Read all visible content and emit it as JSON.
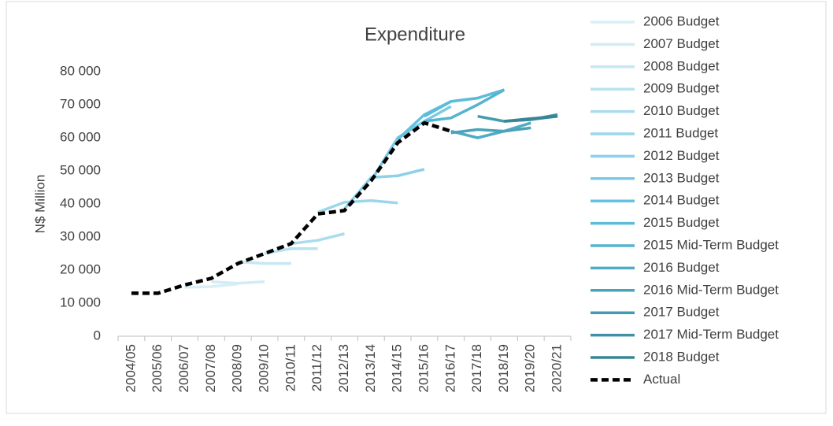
{
  "chart_data": {
    "type": "line",
    "title": "Expenditure",
    "y_label": "N$ Million",
    "categories": [
      "2004/05",
      "2005/06",
      "2006/07",
      "2007/08",
      "2008/09",
      "2009/10",
      "2010/11",
      "2011/12",
      "2012/13",
      "2013/14",
      "2014/15",
      "2015/16",
      "2016/17",
      "2017/18",
      "2018/19",
      "2019/20",
      "2020/21"
    ],
    "ylim": [
      0,
      80000
    ],
    "yticks": [
      0,
      {
        "value": 10000,
        "label": "10 000"
      },
      {
        "value": 20000,
        "label": "20 000"
      },
      {
        "value": 30000,
        "label": "30 000"
      },
      {
        "value": 40000,
        "label": "40 000"
      },
      {
        "value": 50000,
        "label": "50 000"
      },
      {
        "value": 60000,
        "label": "60 000"
      },
      {
        "value": 70000,
        "label": "70 000"
      },
      {
        "value": 80000,
        "label": "80 000"
      }
    ],
    "grid": false,
    "legend": "right",
    "series": [
      {
        "name": "2006 Budget",
        "color": "#d9eff8",
        "values": [
          null,
          null,
          14800,
          15000,
          15800,
          null,
          null,
          null,
          null,
          null,
          null,
          null,
          null,
          null,
          null,
          null,
          null
        ]
      },
      {
        "name": "2007 Budget",
        "color": "#d2ecf6",
        "values": [
          null,
          null,
          null,
          16500,
          16000,
          16500,
          null,
          null,
          null,
          null,
          null,
          null,
          null,
          null,
          null,
          null,
          null
        ]
      },
      {
        "name": "2008 Budget",
        "color": "#c6e7f3",
        "values": [
          null,
          null,
          null,
          null,
          22500,
          22000,
          22000,
          null,
          null,
          null,
          null,
          null,
          null,
          null,
          null,
          null,
          null
        ]
      },
      {
        "name": "2009 Budget",
        "color": "#b9e2f0",
        "values": [
          null,
          null,
          null,
          null,
          null,
          25000,
          26500,
          26500,
          null,
          null,
          null,
          null,
          null,
          null,
          null,
          null,
          null
        ]
      },
      {
        "name": "2010 Budget",
        "color": "#aadced",
        "values": [
          null,
          null,
          null,
          null,
          null,
          null,
          28000,
          29000,
          31000,
          null,
          null,
          null,
          null,
          null,
          null,
          null,
          null
        ]
      },
      {
        "name": "2011 Budget",
        "color": "#9cd6ea",
        "values": [
          null,
          null,
          null,
          null,
          null,
          null,
          null,
          37500,
          40500,
          41000,
          40300,
          null,
          null,
          null,
          null,
          null,
          null
        ]
      },
      {
        "name": "2012 Budget",
        "color": "#8dd0e7",
        "values": [
          null,
          null,
          null,
          null,
          null,
          null,
          null,
          null,
          38500,
          48000,
          48500,
          50500,
          null,
          null,
          null,
          null,
          null
        ]
      },
      {
        "name": "2013 Budget",
        "color": "#7acae5",
        "values": [
          null,
          null,
          null,
          null,
          null,
          null,
          null,
          null,
          null,
          47000,
          60000,
          65000,
          69500,
          null,
          null,
          null,
          null
        ]
      },
      {
        "name": "2014 Budget",
        "color": "#62c3e0",
        "values": [
          null,
          null,
          null,
          null,
          null,
          null,
          null,
          null,
          null,
          null,
          59500,
          67000,
          71000,
          72000,
          null,
          null,
          null
        ]
      },
      {
        "name": "2015 Budget",
        "color": "#5bbcd8",
        "values": [
          null,
          null,
          null,
          null,
          null,
          null,
          null,
          null,
          null,
          null,
          null,
          66500,
          71000,
          72000,
          74500,
          null,
          null
        ]
      },
      {
        "name": "2015 Mid-Term Budget",
        "color": "#55b4cf",
        "values": [
          null,
          null,
          null,
          null,
          null,
          null,
          null,
          null,
          null,
          null,
          null,
          65000,
          66000,
          70000,
          74500,
          null,
          null
        ]
      },
      {
        "name": "2016 Budget",
        "color": "#4fabc4",
        "values": [
          null,
          null,
          null,
          null,
          null,
          null,
          null,
          null,
          null,
          null,
          null,
          null,
          62000,
          60000,
          62000,
          64500,
          null
        ]
      },
      {
        "name": "2016 Mid-Term Budget",
        "color": "#4aa3b9",
        "values": [
          null,
          null,
          null,
          null,
          null,
          null,
          null,
          null,
          null,
          null,
          null,
          null,
          61500,
          62500,
          62000,
          63000,
          null
        ]
      },
      {
        "name": "2017 Budget",
        "color": "#459aae",
        "values": [
          null,
          null,
          null,
          null,
          null,
          null,
          null,
          null,
          null,
          null,
          null,
          null,
          null,
          66500,
          65000,
          65500,
          66500
        ]
      },
      {
        "name": "2017 Mid-Term Budget",
        "color": "#3f90a3",
        "values": [
          null,
          null,
          null,
          null,
          null,
          null,
          null,
          null,
          null,
          null,
          null,
          null,
          null,
          null,
          65000,
          65500,
          67000
        ]
      },
      {
        "name": "2018 Budget",
        "color": "#388596",
        "values": [
          null,
          null,
          null,
          null,
          null,
          null,
          null,
          null,
          null,
          null,
          null,
          null,
          null,
          null,
          65000,
          65800,
          66500
        ]
      },
      {
        "name": "Actual",
        "color": "#000000",
        "line_style": "dashed",
        "values": [
          13000,
          13000,
          15500,
          17500,
          22000,
          25000,
          28000,
          37000,
          38000,
          47000,
          58500,
          64500,
          62000,
          null,
          null,
          null,
          null
        ]
      }
    ]
  }
}
